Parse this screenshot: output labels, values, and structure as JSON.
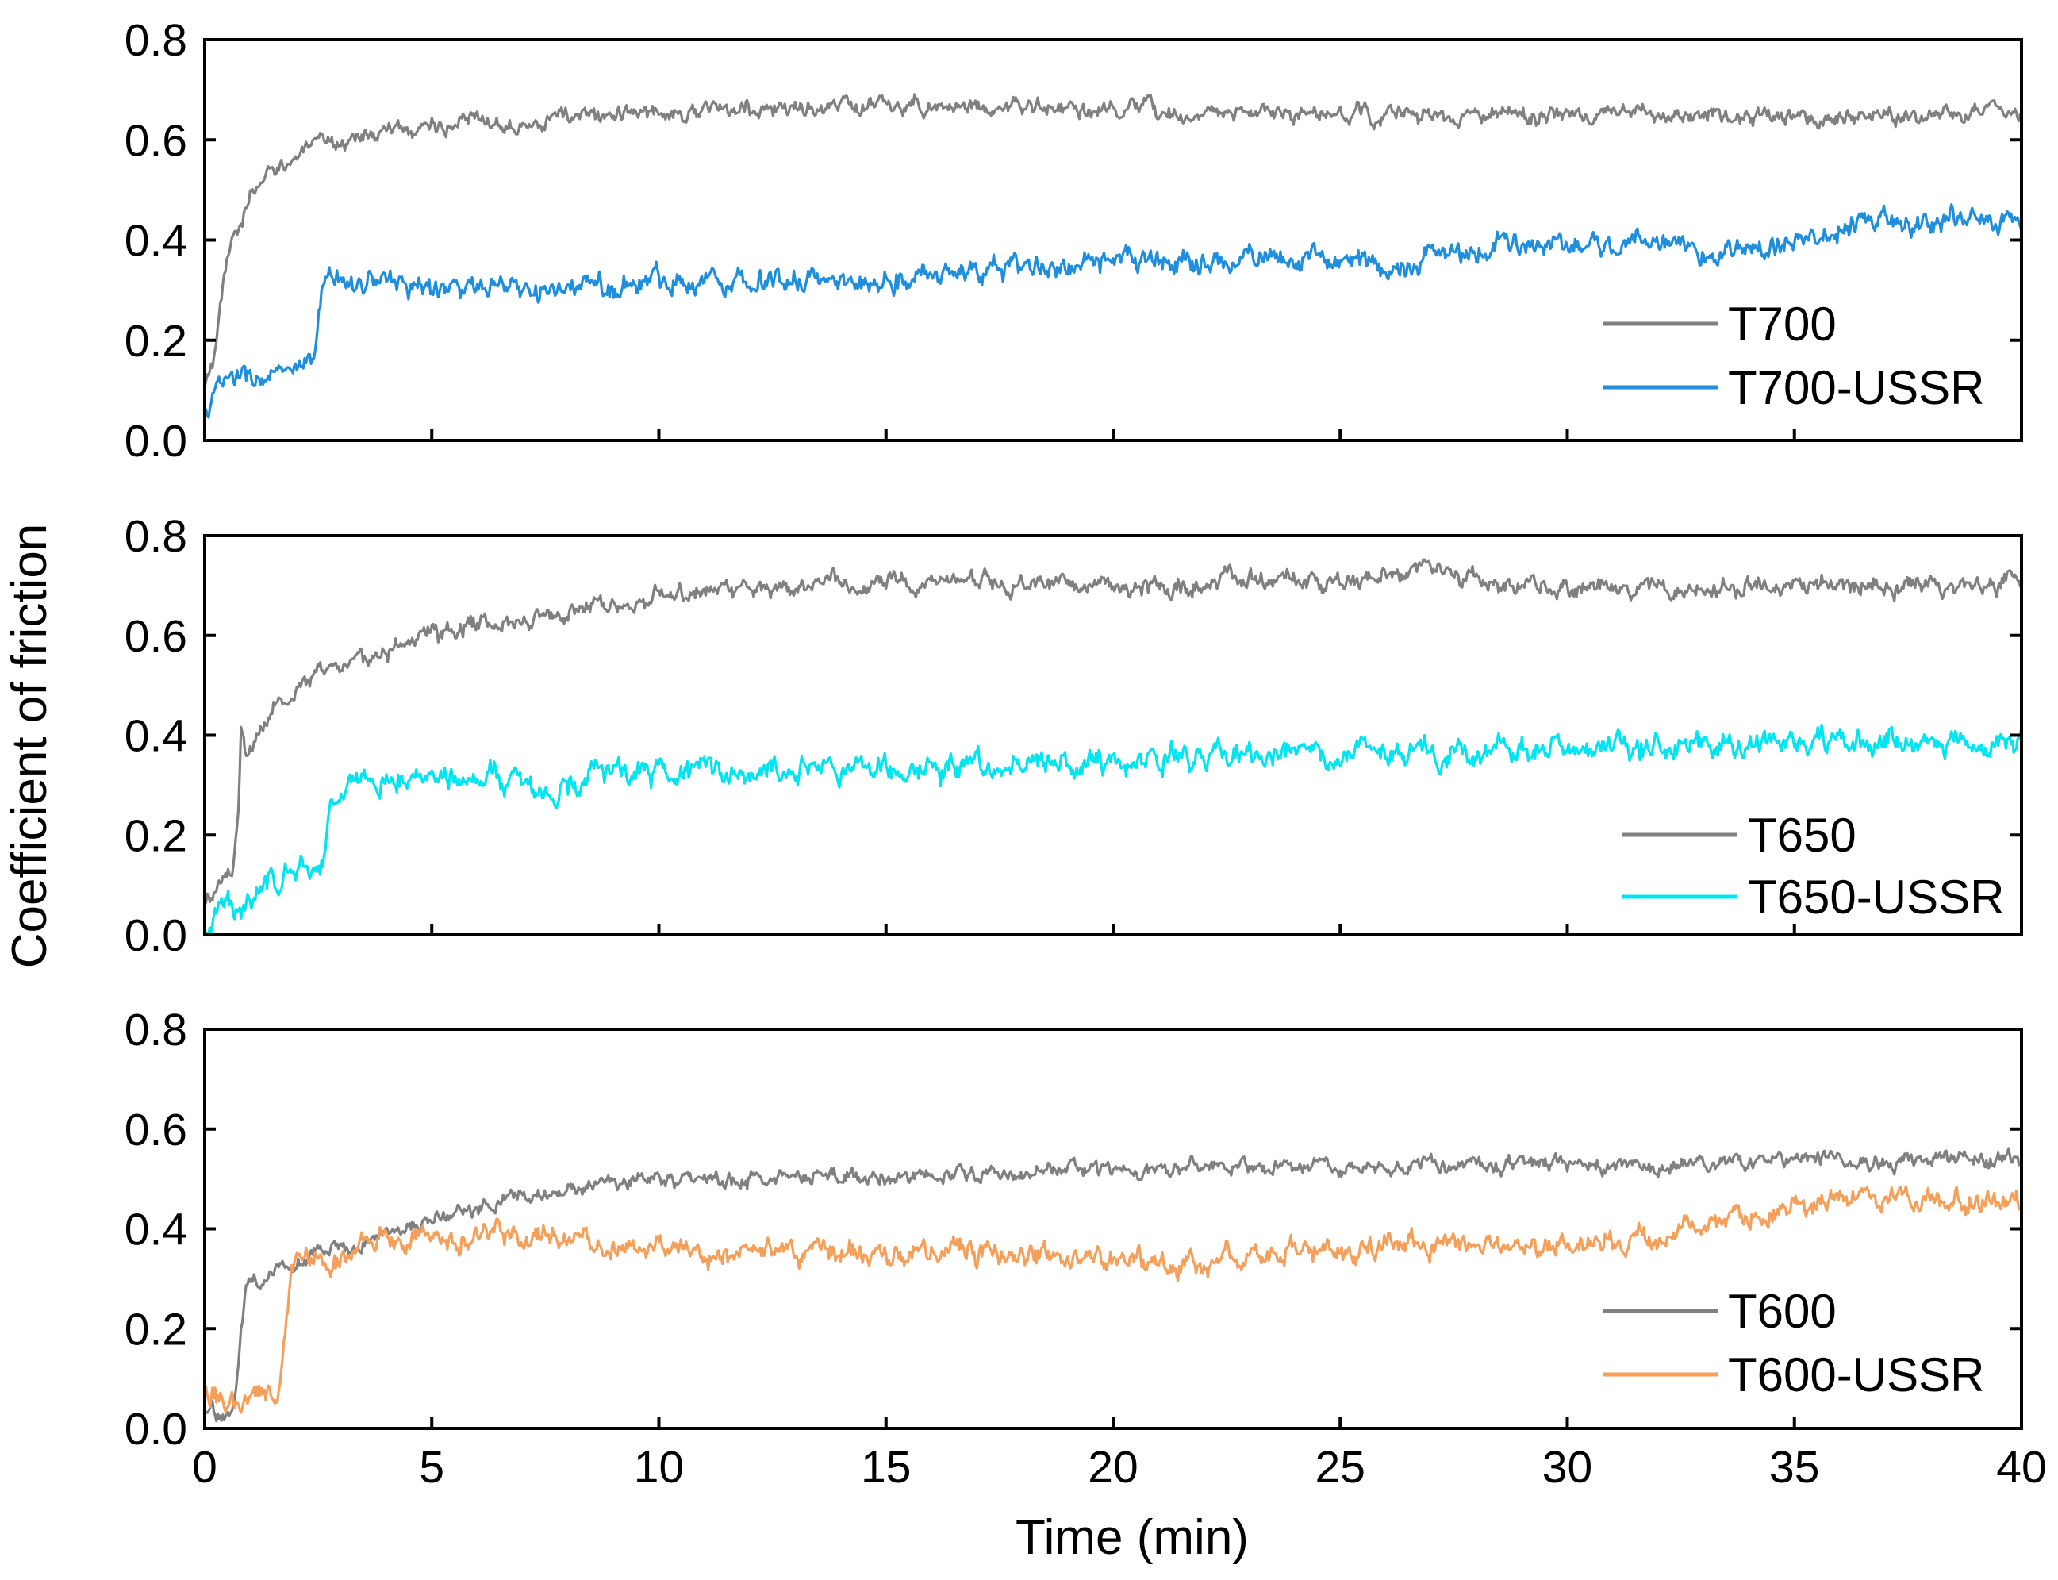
{
  "chart_data": {
    "type": "line",
    "xlabel": "Time (min)",
    "ylabel": "Coefficient of friction",
    "xlim": [
      0,
      40
    ],
    "xticks": [
      0,
      5,
      10,
      15,
      20,
      25,
      30,
      35,
      40
    ],
    "x_tick_labels": [
      "0",
      "5",
      "10",
      "15",
      "20",
      "25",
      "30",
      "35",
      "40"
    ],
    "panels": [
      {
        "id": "top",
        "ylim": [
          0,
          0.8
        ],
        "yticks": [
          0,
          0.2,
          0.4,
          0.6,
          0.8
        ],
        "y_tick_labels": [
          "0.0",
          "0.2",
          "0.4",
          "0.6",
          "0.8"
        ],
        "legend_position": "bottom-right",
        "series": [
          {
            "name": "T700",
            "color": "#808080",
            "noise": 0.012,
            "points": [
              [
                0,
                0.1
              ],
              [
                0.25,
                0.18
              ],
              [
                0.4,
                0.3
              ],
              [
                0.6,
                0.4
              ],
              [
                1,
                0.48
              ],
              [
                1.5,
                0.54
              ],
              [
                2,
                0.57
              ],
              [
                3,
                0.6
              ],
              [
                4,
                0.615
              ],
              [
                5,
                0.63
              ],
              [
                6,
                0.635
              ],
              [
                7,
                0.64
              ],
              [
                8,
                0.645
              ],
              [
                9,
                0.65
              ],
              [
                10,
                0.655
              ],
              [
                12,
                0.66
              ],
              [
                14,
                0.665
              ],
              [
                16,
                0.67
              ],
              [
                18,
                0.665
              ],
              [
                20,
                0.655
              ],
              [
                22,
                0.655
              ],
              [
                24,
                0.65
              ],
              [
                26,
                0.65
              ],
              [
                28,
                0.645
              ],
              [
                30,
                0.65
              ],
              [
                32,
                0.645
              ],
              [
                34,
                0.645
              ],
              [
                36,
                0.65
              ],
              [
                38,
                0.655
              ],
              [
                40,
                0.655
              ]
            ]
          },
          {
            "name": "T700-USSR",
            "color": "#1f8fdd",
            "noise": 0.016,
            "points": [
              [
                0,
                0.05
              ],
              [
                0.2,
                0.09
              ],
              [
                0.5,
                0.12
              ],
              [
                1,
                0.125
              ],
              [
                2,
                0.13
              ],
              [
                2.4,
                0.14
              ],
              [
                2.5,
                0.25
              ],
              [
                2.6,
                0.32
              ],
              [
                3,
                0.32
              ],
              [
                4,
                0.32
              ],
              [
                5,
                0.305
              ],
              [
                6,
                0.3
              ],
              [
                7,
                0.295
              ],
              [
                8,
                0.3
              ],
              [
                9,
                0.31
              ],
              [
                10,
                0.32
              ],
              [
                12,
                0.325
              ],
              [
                13,
                0.32
              ],
              [
                14,
                0.315
              ],
              [
                16,
                0.33
              ],
              [
                18,
                0.345
              ],
              [
                20,
                0.35
              ],
              [
                22,
                0.36
              ],
              [
                24,
                0.365
              ],
              [
                25,
                0.36
              ],
              [
                26,
                0.345
              ],
              [
                27,
                0.365
              ],
              [
                28,
                0.38
              ],
              [
                30,
                0.39
              ],
              [
                32,
                0.4
              ],
              [
                33,
                0.37
              ],
              [
                34,
                0.375
              ],
              [
                35,
                0.4
              ],
              [
                36,
                0.42
              ],
              [
                38,
                0.44
              ],
              [
                40,
                0.445
              ]
            ]
          }
        ]
      },
      {
        "id": "middle",
        "ylim": [
          0,
          0.8
        ],
        "yticks": [
          0,
          0.2,
          0.4,
          0.6,
          0.8
        ],
        "y_tick_labels": [
          "0.0",
          "0.2",
          "0.4",
          "0.6",
          "0.8"
        ],
        "legend_position": "bottom-right",
        "series": [
          {
            "name": "T650",
            "color": "#808080",
            "noise": 0.013,
            "points": [
              [
                0,
                0.07
              ],
              [
                0.3,
                0.09
              ],
              [
                0.6,
                0.13
              ],
              [
                0.75,
                0.25
              ],
              [
                0.8,
                0.42
              ],
              [
                0.9,
                0.36
              ],
              [
                1,
                0.38
              ],
              [
                1.5,
                0.45
              ],
              [
                2,
                0.5
              ],
              [
                3,
                0.54
              ],
              [
                4,
                0.57
              ],
              [
                5,
                0.6
              ],
              [
                6,
                0.63
              ],
              [
                7,
                0.635
              ],
              [
                8,
                0.65
              ],
              [
                9,
                0.665
              ],
              [
                10,
                0.68
              ],
              [
                12,
                0.695
              ],
              [
                14,
                0.71
              ],
              [
                16,
                0.71
              ],
              [
                18,
                0.705
              ],
              [
                20,
                0.7
              ],
              [
                22,
                0.705
              ],
              [
                24,
                0.71
              ],
              [
                26,
                0.72
              ],
              [
                27,
                0.74
              ],
              [
                28,
                0.72
              ],
              [
                29,
                0.7
              ],
              [
                30,
                0.7
              ],
              [
                32,
                0.695
              ],
              [
                33,
                0.685
              ],
              [
                34,
                0.7
              ],
              [
                36,
                0.7
              ],
              [
                38,
                0.695
              ],
              [
                40,
                0.71
              ]
            ]
          },
          {
            "name": "T650-USSR",
            "color": "#00e5f0",
            "noise": 0.018,
            "points": [
              [
                0,
                0.02
              ],
              [
                0.5,
                0.05
              ],
              [
                1,
                0.08
              ],
              [
                1.5,
                0.11
              ],
              [
                2,
                0.13
              ],
              [
                2.6,
                0.15
              ],
              [
                2.7,
                0.22
              ],
              [
                2.8,
                0.27
              ],
              [
                3,
                0.29
              ],
              [
                4,
                0.31
              ],
              [
                5,
                0.325
              ],
              [
                6,
                0.33
              ],
              [
                7,
                0.3
              ],
              [
                7.5,
                0.27
              ],
              [
                8,
                0.3
              ],
              [
                9,
                0.32
              ],
              [
                10,
                0.325
              ],
              [
                12,
                0.33
              ],
              [
                14,
                0.335
              ],
              [
                16,
                0.34
              ],
              [
                18,
                0.345
              ],
              [
                20,
                0.35
              ],
              [
                22,
                0.355
              ],
              [
                24,
                0.36
              ],
              [
                26,
                0.365
              ],
              [
                28,
                0.37
              ],
              [
                30,
                0.375
              ],
              [
                32,
                0.38
              ],
              [
                34,
                0.38
              ],
              [
                36,
                0.385
              ],
              [
                38,
                0.385
              ],
              [
                40,
                0.39
              ]
            ]
          }
        ]
      },
      {
        "id": "bottom",
        "ylim": [
          0,
          0.8
        ],
        "yticks": [
          0,
          0.2,
          0.4,
          0.6,
          0.8
        ],
        "y_tick_labels": [
          "0.0",
          "0.2",
          "0.4",
          "0.6",
          "0.8"
        ],
        "legend_position": "bottom-right",
        "series": [
          {
            "name": "T600",
            "color": "#808080",
            "noise": 0.011,
            "points": [
              [
                0,
                0.04
              ],
              [
                0.3,
                0.03
              ],
              [
                0.6,
                0.03
              ],
              [
                0.7,
                0.08
              ],
              [
                0.8,
                0.2
              ],
              [
                0.9,
                0.27
              ],
              [
                1,
                0.29
              ],
              [
                1.5,
                0.31
              ],
              [
                2,
                0.33
              ],
              [
                3,
                0.36
              ],
              [
                4,
                0.39
              ],
              [
                5,
                0.42
              ],
              [
                6,
                0.44
              ],
              [
                7,
                0.46
              ],
              [
                8,
                0.48
              ],
              [
                9,
                0.49
              ],
              [
                10,
                0.5
              ],
              [
                12,
                0.5
              ],
              [
                14,
                0.505
              ],
              [
                16,
                0.51
              ],
              [
                18,
                0.515
              ],
              [
                20,
                0.52
              ],
              [
                22,
                0.525
              ],
              [
                24,
                0.52
              ],
              [
                26,
                0.525
              ],
              [
                28,
                0.53
              ],
              [
                30,
                0.53
              ],
              [
                32,
                0.53
              ],
              [
                34,
                0.535
              ],
              [
                36,
                0.535
              ],
              [
                38,
                0.535
              ],
              [
                40,
                0.535
              ]
            ]
          },
          {
            "name": "T600-USSR",
            "color": "#f5a05a",
            "noise": 0.016,
            "points": [
              [
                0,
                0.07
              ],
              [
                0.5,
                0.06
              ],
              [
                1,
                0.06
              ],
              [
                1.6,
                0.07
              ],
              [
                1.7,
                0.12
              ],
              [
                1.8,
                0.22
              ],
              [
                1.9,
                0.3
              ],
              [
                2,
                0.32
              ],
              [
                3,
                0.35
              ],
              [
                4,
                0.38
              ],
              [
                5,
                0.39
              ],
              [
                5.5,
                0.37
              ],
              [
                6,
                0.39
              ],
              [
                6.5,
                0.41
              ],
              [
                7,
                0.39
              ],
              [
                8,
                0.38
              ],
              [
                10,
                0.36
              ],
              [
                12,
                0.35
              ],
              [
                14,
                0.355
              ],
              [
                16,
                0.35
              ],
              [
                18,
                0.345
              ],
              [
                20,
                0.34
              ],
              [
                21,
                0.33
              ],
              [
                22,
                0.335
              ],
              [
                23,
                0.35
              ],
              [
                24,
                0.36
              ],
              [
                26,
                0.36
              ],
              [
                28,
                0.37
              ],
              [
                30,
                0.37
              ],
              [
                32,
                0.38
              ],
              [
                33,
                0.4
              ],
              [
                34,
                0.42
              ],
              [
                35,
                0.45
              ],
              [
                36,
                0.465
              ],
              [
                38,
                0.465
              ],
              [
                40,
                0.46
              ]
            ]
          }
        ]
      }
    ]
  }
}
